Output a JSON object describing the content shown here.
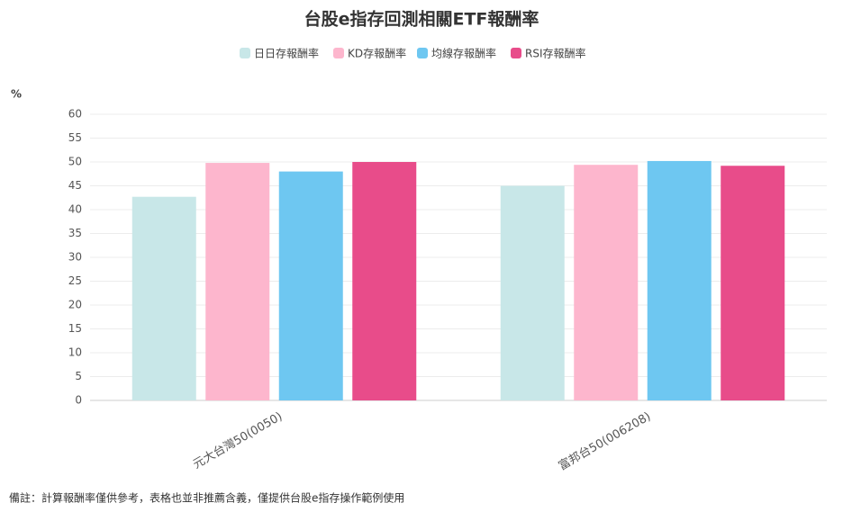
{
  "chart_data": {
    "type": "bar",
    "title": "台股e指存回測相關ETF報酬率",
    "y_label": "%",
    "categories": [
      "元大台灣50(0050)",
      "富邦台50(006208)"
    ],
    "series": [
      {
        "name": "日日存報酬率",
        "color": "#c8e7e8",
        "values": [
          42.7,
          45.0
        ]
      },
      {
        "name": "KD存報酬率",
        "color": "#fdb6cd",
        "values": [
          49.8,
          49.4
        ]
      },
      {
        "name": "均線存報酬率",
        "color": "#6ec7f1",
        "values": [
          48.0,
          50.2
        ]
      },
      {
        "name": "RSI存報酬率",
        "color": "#e84c8a",
        "values": [
          50.0,
          49.2
        ]
      }
    ],
    "ylim": [
      0,
      60
    ],
    "yticks": [
      0,
      5,
      10,
      15,
      20,
      25,
      30,
      35,
      40,
      45,
      50,
      55,
      60
    ],
    "grid": true,
    "footnote": "備註：計算報酬率僅供參考，表格也並非推薦含義，僅提供台股e指存操作範例使用"
  }
}
